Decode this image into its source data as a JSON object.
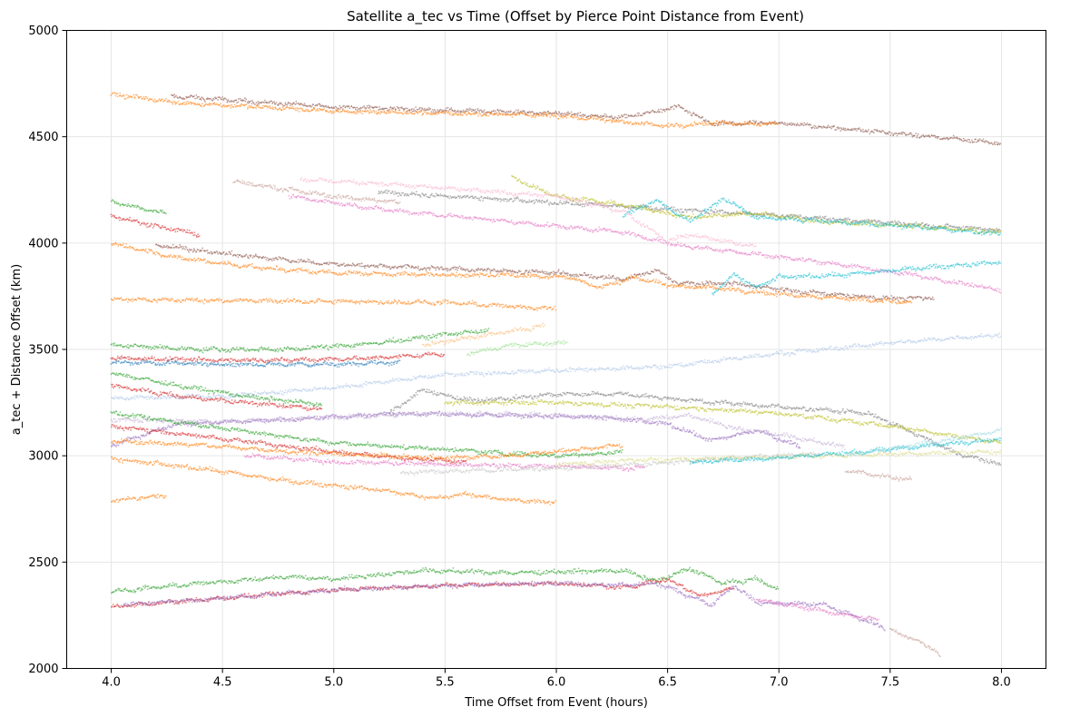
{
  "chart_data": {
    "type": "scatter",
    "title": "Satellite a_tec vs Time (Offset by Pierce Point Distance from Event)",
    "xlabel": "Time Offset from Event (hours)",
    "ylabel": "a_tec + Distance Offset (km)",
    "xlim": [
      3.8,
      8.2
    ],
    "ylim": [
      2000,
      5000
    ],
    "xticks": [
      "4.0",
      "4.5",
      "5.0",
      "5.5",
      "6.0",
      "6.5",
      "7.0",
      "7.5",
      "8.0"
    ],
    "yticks": [
      "2000",
      "2500",
      "3000",
      "3500",
      "4000",
      "4500",
      "5000"
    ],
    "grid": true,
    "legend": "none",
    "series": [
      {
        "color": "#8c564b",
        "x": [
          4.27,
          5.0,
          6.0,
          6.3,
          6.45,
          6.55,
          6.7,
          7.0,
          8.0
        ],
        "y": [
          4690,
          4640,
          4610,
          4590,
          4620,
          4640,
          4560,
          4565,
          4470
        ]
      },
      {
        "color": "#ff7f0e",
        "x": [
          4.0,
          4.3,
          5.0,
          6.0,
          6.3,
          6.5,
          6.7,
          7.0
        ],
        "y": [
          4700,
          4660,
          4620,
          4600,
          4570,
          4550,
          4565,
          4560
        ]
      },
      {
        "color": "#7f7f7f",
        "x": [
          5.2,
          5.5,
          6.0,
          6.5,
          7.0,
          7.5,
          8.0
        ],
        "y": [
          4240,
          4220,
          4190,
          4160,
          4130,
          4095,
          4060
        ]
      },
      {
        "color": "#bcbd22",
        "x": [
          5.8,
          6.0,
          6.3,
          6.6,
          6.9,
          7.2,
          7.6,
          8.0
        ],
        "y": [
          4310,
          4220,
          4180,
          4120,
          4140,
          4100,
          4080,
          4050
        ]
      },
      {
        "color": "#17becf",
        "x": [
          6.3,
          6.45,
          6.6,
          6.75,
          6.9,
          7.1,
          7.4,
          7.7,
          8.0
        ],
        "y": [
          4130,
          4200,
          4100,
          4210,
          4120,
          4110,
          4090,
          4070,
          4040
        ]
      },
      {
        "color": "#e377c2",
        "x": [
          4.8,
          5.2,
          5.6,
          6.0,
          6.3,
          6.55,
          6.8,
          7.2,
          7.6,
          8.0
        ],
        "y": [
          4220,
          4160,
          4120,
          4080,
          4050,
          3990,
          3960,
          3910,
          3850,
          3780
        ]
      },
      {
        "color": "#f7b6d2",
        "x": [
          4.85,
          5.2,
          5.6,
          6.0,
          6.3,
          6.5,
          6.6,
          6.9
        ],
        "y": [
          4300,
          4280,
          4250,
          4220,
          4150,
          4010,
          4040,
          3980
        ]
      },
      {
        "color": "#c49c94",
        "x": [
          4.55,
          4.8,
          5.0,
          5.3
        ],
        "y": [
          4290,
          4250,
          4220,
          4190
        ]
      },
      {
        "color": "#2ca02c",
        "x": [
          4.0,
          4.1,
          4.25
        ],
        "y": [
          4195,
          4170,
          4140
        ]
      },
      {
        "color": "#d62728",
        "x": [
          4.0,
          4.2,
          4.4
        ],
        "y": [
          4130,
          4080,
          4040
        ]
      },
      {
        "color": "#8c564b",
        "x": [
          4.2,
          4.6,
          5.0,
          5.5,
          6.0,
          6.3,
          6.45,
          6.55,
          6.8,
          7.1,
          7.5,
          7.7
        ],
        "y": [
          3990,
          3940,
          3900,
          3880,
          3860,
          3830,
          3870,
          3810,
          3810,
          3770,
          3740,
          3740
        ]
      },
      {
        "color": "#ff7f0e",
        "x": [
          4.0,
          4.3,
          4.7,
          5.0,
          5.5,
          5.8,
          6.05,
          6.2,
          6.35,
          6.5,
          6.7,
          7.0,
          7.6
        ],
        "y": [
          4000,
          3930,
          3880,
          3860,
          3850,
          3850,
          3840,
          3790,
          3840,
          3800,
          3790,
          3760,
          3720
        ]
      },
      {
        "color": "#17becf",
        "x": [
          6.7,
          6.8,
          6.9,
          7.0,
          7.3,
          7.6,
          8.0
        ],
        "y": [
          3760,
          3850,
          3790,
          3840,
          3850,
          3880,
          3910
        ]
      },
      {
        "color": "#ff7f0e",
        "x": [
          4.0,
          4.5,
          5.0,
          5.5,
          6.0
        ],
        "y": [
          3735,
          3730,
          3725,
          3720,
          3690
        ]
      },
      {
        "color": "#2ca02c",
        "x": [
          4.0,
          4.4,
          4.8,
          5.2,
          5.5,
          5.7
        ],
        "y": [
          3520,
          3500,
          3500,
          3530,
          3570,
          3590
        ]
      },
      {
        "color": "#ffbb78",
        "x": [
          5.4,
          5.7,
          5.95
        ],
        "y": [
          3520,
          3570,
          3610
        ]
      },
      {
        "color": "#98df8a",
        "x": [
          5.6,
          5.8,
          6.05
        ],
        "y": [
          3480,
          3520,
          3530
        ]
      },
      {
        "color": "#d62728",
        "x": [
          4.0,
          4.4,
          4.8,
          5.2,
          5.5
        ],
        "y": [
          3460,
          3450,
          3450,
          3460,
          3480
        ]
      },
      {
        "color": "#1f77b4",
        "x": [
          4.0,
          4.5,
          5.0,
          5.3
        ],
        "y": [
          3440,
          3430,
          3430,
          3440
        ]
      },
      {
        "color": "#aec7e8",
        "x": [
          4.0,
          4.5,
          5.0,
          5.5,
          6.0,
          6.5,
          7.0,
          7.5,
          8.0
        ],
        "y": [
          3270,
          3280,
          3320,
          3380,
          3400,
          3420,
          3480,
          3530,
          3570
        ]
      },
      {
        "color": "#7f7f7f",
        "x": [
          5.25,
          5.4,
          5.6,
          5.8,
          6.0,
          6.3,
          6.6,
          7.0,
          7.4,
          7.6,
          7.8,
          8.0
        ],
        "y": [
          3200,
          3310,
          3260,
          3270,
          3290,
          3290,
          3260,
          3230,
          3200,
          3110,
          3010,
          2960
        ]
      },
      {
        "color": "#bcbd22",
        "x": [
          5.5,
          6.0,
          6.5,
          7.0,
          7.5,
          8.0
        ],
        "y": [
          3250,
          3250,
          3230,
          3200,
          3140,
          3060
        ]
      },
      {
        "color": "#9467bd",
        "x": [
          4.0,
          4.3,
          4.8,
          5.3,
          5.8,
          6.2,
          6.5,
          6.7,
          6.9,
          7.1
        ],
        "y": [
          3050,
          3150,
          3170,
          3200,
          3190,
          3180,
          3150,
          3070,
          3120,
          3040
        ]
      },
      {
        "color": "#c5b0d5",
        "x": [
          4.0,
          4.5,
          5.0,
          5.5,
          6.0,
          6.4,
          6.6,
          6.8,
          7.0,
          7.3
        ],
        "y": [
          3170,
          3160,
          3180,
          3200,
          3190,
          3170,
          3190,
          3130,
          3100,
          3040
        ]
      },
      {
        "color": "#2ca02c",
        "x": [
          4.0,
          4.3,
          4.6,
          4.95
        ],
        "y": [
          3390,
          3330,
          3280,
          3240
        ]
      },
      {
        "color": "#d62728",
        "x": [
          4.0,
          4.3,
          4.6,
          4.95
        ],
        "y": [
          3330,
          3280,
          3250,
          3220
        ]
      },
      {
        "color": "#2ca02c",
        "x": [
          4.0,
          4.5,
          5.0,
          5.5,
          5.8,
          6.0,
          6.2,
          6.3
        ],
        "y": [
          3200,
          3130,
          3060,
          3030,
          3010,
          3000,
          3010,
          3020
        ]
      },
      {
        "color": "#d62728",
        "x": [
          4.0,
          4.5,
          5.0,
          5.3,
          5.6
        ],
        "y": [
          3140,
          3080,
          3020,
          2990,
          2970
        ]
      },
      {
        "color": "#e377c2",
        "x": [
          4.6,
          5.0,
          5.5,
          6.0,
          6.4
        ],
        "y": [
          3000,
          2970,
          2960,
          2950,
          2940
        ]
      },
      {
        "color": "#ff7f0e",
        "x": [
          4.0,
          4.4,
          4.8,
          5.2,
          5.5,
          5.8,
          6.0,
          6.3
        ],
        "y": [
          3070,
          3050,
          3020,
          3000,
          2990,
          3000,
          3020,
          3050
        ]
      },
      {
        "color": "#c7c7c7",
        "x": [
          5.3,
          5.6,
          6.0,
          6.4,
          6.8,
          7.2
        ],
        "y": [
          2920,
          2930,
          2940,
          2960,
          2990,
          3010
        ]
      },
      {
        "color": "#dbdb8d",
        "x": [
          6.0,
          6.4,
          6.8,
          7.2,
          7.6,
          8.0
        ],
        "y": [
          2960,
          2980,
          2990,
          3000,
          3010,
          3020
        ]
      },
      {
        "color": "#17becf",
        "x": [
          6.6,
          7.0,
          7.4,
          7.8,
          8.0
        ],
        "y": [
          2970,
          2990,
          3020,
          3060,
          3080
        ]
      },
      {
        "color": "#9edae5",
        "x": [
          7.3,
          7.6,
          7.9,
          8.0
        ],
        "y": [
          3000,
          3050,
          3100,
          3120
        ]
      },
      {
        "color": "#ff7f0e",
        "x": [
          4.0,
          4.4,
          4.8,
          5.2,
          5.45,
          5.6,
          5.8,
          6.0
        ],
        "y": [
          2985,
          2940,
          2880,
          2840,
          2800,
          2820,
          2790,
          2780
        ]
      },
      {
        "color": "#ff7f0e",
        "x": [
          4.0,
          4.1,
          4.25
        ],
        "y": [
          2790,
          2800,
          2810
        ]
      },
      {
        "color": "#c49c94",
        "x": [
          7.3,
          7.5,
          7.6
        ],
        "y": [
          2930,
          2900,
          2890
        ]
      },
      {
        "color": "#2ca02c",
        "x": [
          4.0,
          4.4,
          4.8,
          5.0,
          5.4,
          5.8,
          6.3,
          6.45,
          6.6,
          6.75,
          6.9,
          7.0
        ],
        "y": [
          2360,
          2400,
          2430,
          2420,
          2460,
          2450,
          2460,
          2410,
          2470,
          2400,
          2420,
          2370
        ]
      },
      {
        "color": "#d62728",
        "x": [
          4.0,
          4.5,
          5.0,
          5.5,
          6.0,
          6.3,
          6.5,
          6.65,
          6.8
        ],
        "y": [
          2290,
          2330,
          2370,
          2390,
          2400,
          2380,
          2420,
          2340,
          2380
        ]
      },
      {
        "color": "#9467bd",
        "x": [
          4.05,
          4.5,
          5.0,
          5.5,
          6.0,
          6.3,
          6.45,
          6.55,
          6.7,
          6.8,
          6.9,
          7.2,
          7.48
        ],
        "y": [
          2300,
          2330,
          2370,
          2390,
          2400,
          2390,
          2400,
          2360,
          2300,
          2390,
          2310,
          2300,
          2190
        ]
      },
      {
        "color": "#e377c2",
        "x": [
          6.9,
          7.1,
          7.3,
          7.45
        ],
        "y": [
          2320,
          2290,
          2250,
          2230
        ]
      },
      {
        "color": "#c49c94",
        "x": [
          7.5,
          7.6,
          7.7,
          7.73
        ],
        "y": [
          2180,
          2140,
          2090,
          2050
        ]
      }
    ]
  }
}
